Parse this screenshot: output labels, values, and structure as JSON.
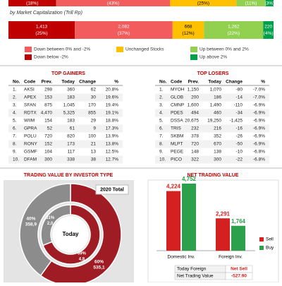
{
  "breadth_bar": {
    "values": [
      18,
      43,
      25,
      11,
      3
    ],
    "value_labels": [
      "(18%)",
      "(43%)",
      "(25%)",
      "(11%)",
      "(3%)"
    ]
  },
  "cap_bar": {
    "subtitle": "by Market Capitalization (Trill Rp)",
    "values": [
      1413,
      2082,
      668,
      1262,
      220
    ],
    "value_labels": [
      "1,413",
      "2,082",
      "668",
      "1,262",
      "220"
    ],
    "pct_labels": [
      "(25%)",
      "(37%)",
      "(12%)",
      "(22%)",
      "(4%)"
    ]
  },
  "colors": [
    "#c00000",
    "#f25c5c",
    "#ffc000",
    "#92d050",
    "#00a04a"
  ],
  "legend": [
    "Down below -2%",
    "Down between 0% and -2%",
    "Unchanged Stocks",
    "Up between 0% and 2%",
    "Up above 2%"
  ],
  "gainers": {
    "title": "TOP GAINERS",
    "header": [
      "No.",
      "Code",
      "Prev.",
      "Today",
      "Change",
      "%"
    ],
    "rows": [
      [
        "1.",
        "AKSI",
        "298",
        "360",
        "62",
        "20.8%"
      ],
      [
        "2.",
        "APEX",
        "153",
        "183",
        "30",
        "19.6%"
      ],
      [
        "3.",
        "SFAN",
        "875",
        "1,045",
        "170",
        "19.4%"
      ],
      [
        "4.",
        "RDTX",
        "4,470",
        "5,325",
        "855",
        "19.1%"
      ],
      [
        "5.",
        "WIIM",
        "154",
        "183",
        "29",
        "18.8%"
      ],
      [
        "6.",
        "GPRA",
        "52",
        "61",
        "9",
        "17.3%"
      ],
      [
        "7.",
        "POLU",
        "720",
        "820",
        "100",
        "13.9%"
      ],
      [
        "8.",
        "RONY",
        "152",
        "173",
        "21",
        "13.8%"
      ],
      [
        "9.",
        "GSMF",
        "104",
        "117",
        "13",
        "12.5%"
      ],
      [
        "10.",
        "DFAM",
        "300",
        "338",
        "38",
        "12.7%"
      ]
    ]
  },
  "losers": {
    "title": "TOP LOSERS",
    "header": [
      "No.",
      "Code",
      "Prev.",
      "Today",
      "Change",
      "%"
    ],
    "rows": [
      [
        "1.",
        "MYOH",
        "1,150",
        "1,070",
        "-80",
        "-7.0%"
      ],
      [
        "2.",
        "GLOB",
        "200",
        "186",
        "-14",
        "-7.0%"
      ],
      [
        "3.",
        "CMNP",
        "1,600",
        "1,490",
        "-110",
        "-6.9%"
      ],
      [
        "4.",
        "PDES",
        "494",
        "460",
        "-34",
        "-6.9%"
      ],
      [
        "5.",
        "DSSA",
        "20,675",
        "19,250",
        "-1,425",
        "-6.9%"
      ],
      [
        "6.",
        "TRIS",
        "232",
        "216",
        "-16",
        "-6.9%"
      ],
      [
        "7.",
        "SKBM",
        "378",
        "352",
        "-26",
        "-6.9%"
      ],
      [
        "8.",
        "MLPT",
        "720",
        "670",
        "-50",
        "-6.9%"
      ],
      [
        "9.",
        "PEGE",
        "148",
        "138",
        "-10",
        "-6.8%"
      ],
      [
        "10.",
        "PICO",
        "322",
        "300",
        "-22",
        "-6.8%"
      ]
    ]
  },
  "chart_data": [
    {
      "type": "donut",
      "title": "TRADING VALUE BY INVESTOR TYPE",
      "outer_label": "2020 Total",
      "center_label": "Today",
      "colors": [
        "#a01c24",
        "#8c8c8c"
      ],
      "outer": {
        "values": [
          60,
          40
        ],
        "value_labels": [
          "60%",
          "40%"
        ],
        "amounts": [
          "535,1",
          "358,9"
        ]
      },
      "inner": {
        "values": [
          69,
          31
        ],
        "value_labels": [
          "69%",
          "31%"
        ],
        "amounts": [
          "4,8",
          "2,0"
        ]
      }
    },
    {
      "type": "bar",
      "title": "NET TRADING VALUE",
      "categories": [
        "Domestic Inv.",
        "Foreign Inv."
      ],
      "series": [
        {
          "name": "Sell",
          "color": "#d42020",
          "values": [
            4224,
            2291
          ],
          "value_labels": [
            "4,224",
            "2,291"
          ]
        },
        {
          "name": "Buy",
          "color": "#2ca04a",
          "values": [
            4752,
            1764
          ],
          "value_labels": [
            "4,752",
            "1,764"
          ]
        }
      ],
      "table": [
        [
          "Today Foreign",
          "Net Sell"
        ],
        [
          "Net Trading Value",
          "-527.90"
        ]
      ]
    }
  ]
}
